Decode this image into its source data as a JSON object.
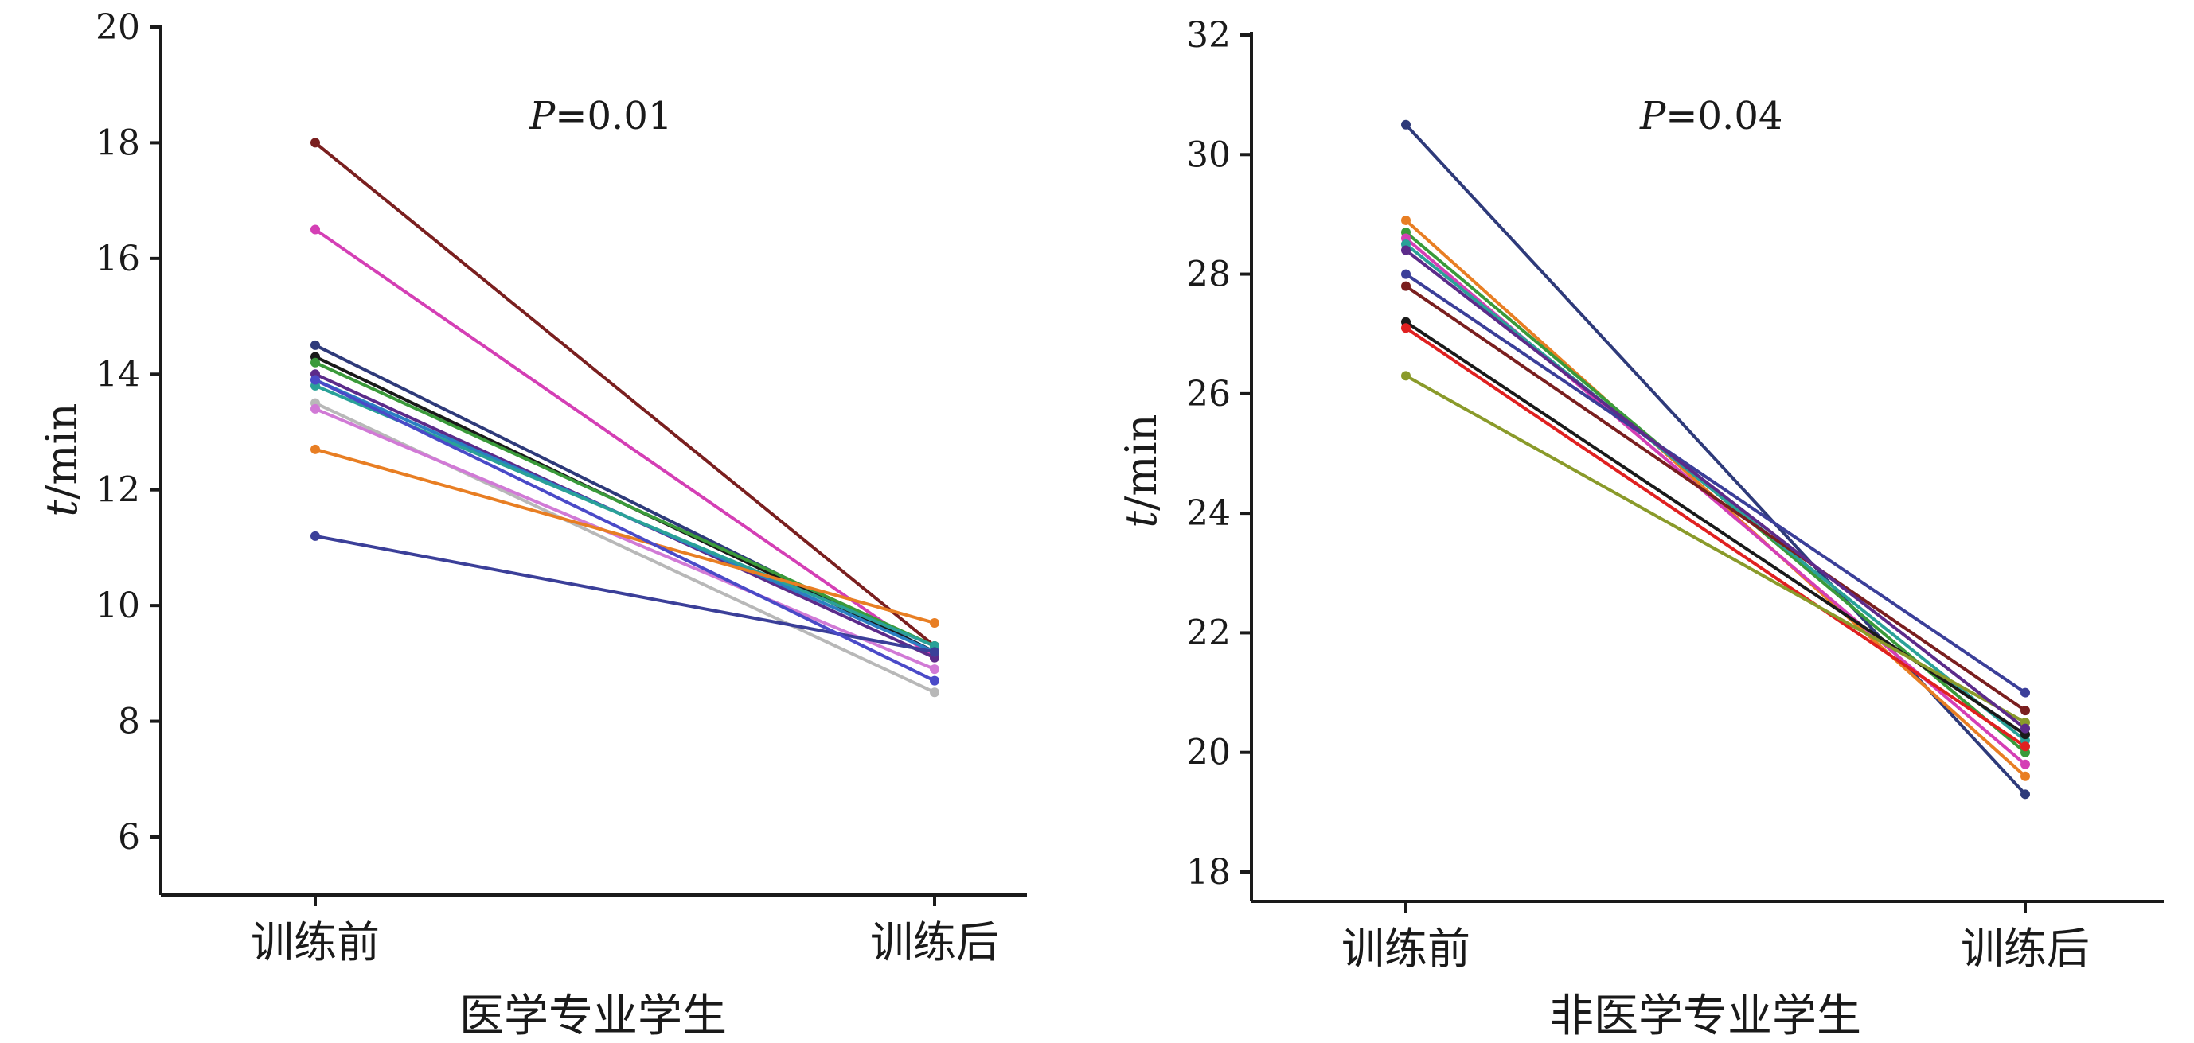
{
  "chart_data": [
    {
      "type": "line",
      "title": "",
      "xlabel": "医学专业学生",
      "ylabel": "t/min",
      "ylabel_italic": "t",
      "ylabel_rest": "/min",
      "annotation_italic": "P",
      "annotation_rest": "=0.01",
      "categories": [
        "训练前",
        "训练后"
      ],
      "ylim": [
        5,
        20
      ],
      "yticks": [
        "6",
        "8",
        "10",
        "12",
        "14",
        "16",
        "18",
        "20"
      ],
      "grid": false,
      "series": [
        {
          "values": [
            18.0,
            9.3
          ],
          "color": "#7a1f1f"
        },
        {
          "values": [
            16.5,
            9.1
          ],
          "color": "#d43fb5"
        },
        {
          "values": [
            14.5,
            9.2
          ],
          "color": "#2e3a7a"
        },
        {
          "values": [
            14.3,
            9.2
          ],
          "color": "#1a1a1a"
        },
        {
          "values": [
            14.2,
            9.3
          ],
          "color": "#3a9a3a"
        },
        {
          "values": [
            14.0,
            9.1
          ],
          "color": "#5c2b8a"
        },
        {
          "values": [
            13.9,
            9.2
          ],
          "color": "#2a7fc2"
        },
        {
          "values": [
            13.8,
            9.3
          ],
          "color": "#2aa198"
        },
        {
          "values": [
            13.5,
            8.5
          ],
          "color": "#b8b8b8"
        },
        {
          "values": [
            13.4,
            8.9
          ],
          "color": "#d17ad6"
        },
        {
          "values": [
            12.7,
            9.7
          ],
          "color": "#e87e23"
        },
        {
          "values": [
            11.2,
            9.2
          ],
          "color": "#3b3f99"
        },
        {
          "values": [
            13.9,
            8.7
          ],
          "color": "#4a4ac8"
        }
      ]
    },
    {
      "type": "line",
      "title": "",
      "xlabel": "非医学专业学生",
      "ylabel": "t/min",
      "ylabel_italic": "t",
      "ylabel_rest": "/min",
      "annotation_italic": "P",
      "annotation_rest": "=0.04",
      "categories": [
        "训练前",
        "训练后"
      ],
      "ylim": [
        17.5,
        32
      ],
      "yticks": [
        "18",
        "20",
        "22",
        "24",
        "26",
        "28",
        "30",
        "32"
      ],
      "grid": false,
      "series": [
        {
          "values": [
            30.5,
            19.3
          ],
          "color": "#2e3a7a"
        },
        {
          "values": [
            28.9,
            19.6
          ],
          "color": "#e87e23"
        },
        {
          "values": [
            28.7,
            20.0
          ],
          "color": "#3a9a3a"
        },
        {
          "values": [
            28.6,
            19.8
          ],
          "color": "#d43fb5"
        },
        {
          "values": [
            28.5,
            20.2
          ],
          "color": "#2aa198"
        },
        {
          "values": [
            28.0,
            21.0
          ],
          "color": "#3b3f99"
        },
        {
          "values": [
            27.8,
            20.7
          ],
          "color": "#7a1f1f"
        },
        {
          "values": [
            27.2,
            20.3
          ],
          "color": "#1a1a1a"
        },
        {
          "values": [
            27.1,
            20.1
          ],
          "color": "#e02020"
        },
        {
          "values": [
            26.3,
            20.5
          ],
          "color": "#8a9a2a"
        },
        {
          "values": [
            28.4,
            20.4
          ],
          "color": "#5c2b8a"
        }
      ]
    }
  ]
}
